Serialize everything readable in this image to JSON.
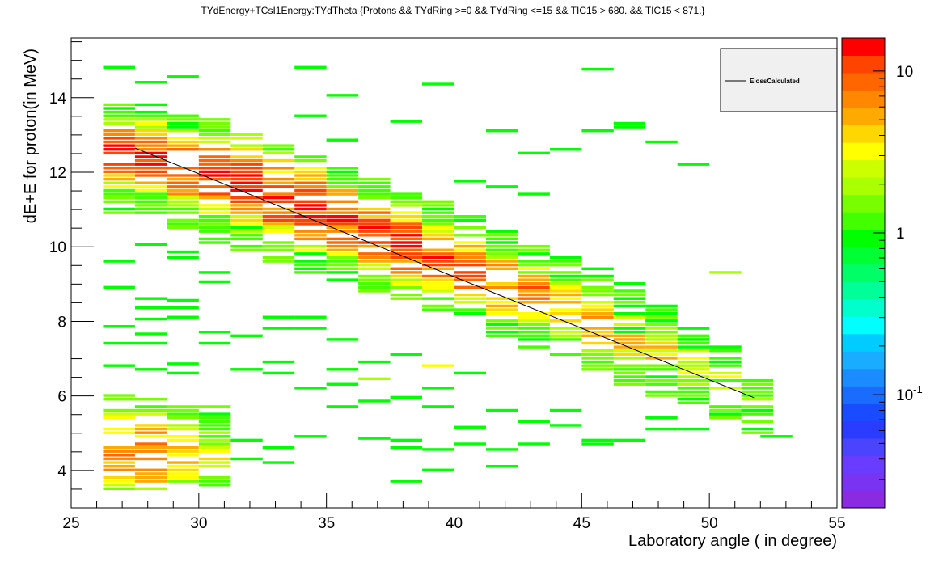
{
  "chart_data": {
    "type": "heatmap",
    "title": "TYdEnergy+TCsI1Energy:TYdTheta {Protons && TYdRing >=0 &&  TYdRing <=15 && TIC15 > 680. && TIC15 < 871.}",
    "xlabel": "Laboratory angle ( in degree)",
    "ylabel": "dE+E for proton(in MeV)",
    "xlim": [
      25,
      55
    ],
    "ylim": [
      3,
      15.6
    ],
    "x_ticks": [
      "25",
      "30",
      "35",
      "40",
      "45",
      "50",
      "55"
    ],
    "y_ticks": [
      "4",
      "6",
      "8",
      "10",
      "12",
      "14"
    ],
    "z_scale": "log",
    "z_range": [
      0.02,
      16
    ],
    "z_ticks": [
      {
        "value": 0.1,
        "label": "10",
        "exp": "-1"
      },
      {
        "value": 1,
        "label": "1",
        "exp": ""
      },
      {
        "value": 10,
        "label": "10",
        "exp": ""
      }
    ],
    "palette": [
      "#8a2be2",
      "#7a33f0",
      "#6a3cff",
      "#4a44ff",
      "#2a3cff",
      "#1a4cff",
      "#1a6cff",
      "#1a8cff",
      "#1aacff",
      "#00ccff",
      "#00ffff",
      "#00ffcc",
      "#00ff99",
      "#00ff66",
      "#00ff33",
      "#00ff00",
      "#44ff00",
      "#77ff00",
      "#aaff00",
      "#ccff00",
      "#ffff00",
      "#ffd700",
      "#ffaa00",
      "#ff8800",
      "#ff6600",
      "#ff4400",
      "#ff0000"
    ],
    "bin_width_x": 1.25,
    "bin_height_y": 0.1,
    "bands": [
      {
        "x0": 26.25,
        "y_lo": 10.9,
        "y_hi": 13.8,
        "peak": 12.5,
        "sigma": 0.5,
        "zmax": 12
      },
      {
        "x0": 27.5,
        "y_lo": 10.8,
        "y_hi": 13.6,
        "peak": 12.4,
        "sigma": 0.5,
        "zmax": 13
      },
      {
        "x0": 28.75,
        "y_lo": 10.5,
        "y_hi": 13.5,
        "peak": 12.1,
        "sigma": 0.55,
        "zmax": 11
      },
      {
        "x0": 30.0,
        "y_lo": 10.1,
        "y_hi": 13.4,
        "peak": 11.9,
        "sigma": 0.55,
        "zmax": 12
      },
      {
        "x0": 31.25,
        "y_lo": 9.9,
        "y_hi": 13.0,
        "peak": 11.7,
        "sigma": 0.6,
        "zmax": 14
      },
      {
        "x0": 32.5,
        "y_lo": 9.6,
        "y_hi": 12.7,
        "peak": 11.3,
        "sigma": 0.6,
        "zmax": 12
      },
      {
        "x0": 33.75,
        "y_lo": 9.3,
        "y_hi": 12.4,
        "peak": 11.0,
        "sigma": 0.6,
        "zmax": 13
      },
      {
        "x0": 35.0,
        "y_lo": 9.1,
        "y_hi": 12.1,
        "peak": 10.7,
        "sigma": 0.55,
        "zmax": 12
      },
      {
        "x0": 36.25,
        "y_lo": 8.8,
        "y_hi": 11.8,
        "peak": 10.3,
        "sigma": 0.55,
        "zmax": 11
      },
      {
        "x0": 37.5,
        "y_lo": 8.6,
        "y_hi": 11.5,
        "peak": 10.0,
        "sigma": 0.55,
        "zmax": 12
      },
      {
        "x0": 38.75,
        "y_lo": 8.3,
        "y_hi": 11.2,
        "peak": 9.7,
        "sigma": 0.5,
        "zmax": 10
      },
      {
        "x0": 40.0,
        "y_lo": 8.0,
        "y_hi": 10.8,
        "peak": 9.3,
        "sigma": 0.5,
        "zmax": 11
      },
      {
        "x0": 41.25,
        "y_lo": 7.6,
        "y_hi": 10.4,
        "peak": 9.0,
        "sigma": 0.5,
        "zmax": 9
      },
      {
        "x0": 42.5,
        "y_lo": 7.3,
        "y_hi": 10.0,
        "peak": 8.7,
        "sigma": 0.45,
        "zmax": 8
      },
      {
        "x0": 43.75,
        "y_lo": 7.1,
        "y_hi": 9.6,
        "peak": 8.3,
        "sigma": 0.45,
        "zmax": 6
      },
      {
        "x0": 45.0,
        "y_lo": 6.7,
        "y_hi": 9.3,
        "peak": 7.9,
        "sigma": 0.45,
        "zmax": 6
      },
      {
        "x0": 46.25,
        "y_lo": 6.3,
        "y_hi": 8.8,
        "peak": 7.5,
        "sigma": 0.45,
        "zmax": 5
      },
      {
        "x0": 47.5,
        "y_lo": 6.0,
        "y_hi": 8.4,
        "peak": 7.2,
        "sigma": 0.45,
        "zmax": 4
      },
      {
        "x0": 48.75,
        "y_lo": 5.7,
        "y_hi": 7.8,
        "peak": 6.8,
        "sigma": 0.4,
        "zmax": 3
      },
      {
        "x0": 50.0,
        "y_lo": 5.4,
        "y_hi": 7.3,
        "peak": 6.4,
        "sigma": 0.4,
        "zmax": 2.5
      },
      {
        "x0": 51.25,
        "y_lo": 5.0,
        "y_hi": 6.4,
        "peak": 5.9,
        "sigma": 0.35,
        "zmax": 1.5
      },
      {
        "x0": 26.25,
        "y_lo": 3.5,
        "y_hi": 6.1,
        "peak": 4.5,
        "sigma": 0.6,
        "zmax": 8
      },
      {
        "x0": 27.5,
        "y_lo": 3.5,
        "y_hi": 5.9,
        "peak": 4.4,
        "sigma": 0.6,
        "zmax": 9
      },
      {
        "x0": 28.75,
        "y_lo": 3.6,
        "y_hi": 5.8,
        "peak": 4.5,
        "sigma": 0.55,
        "zmax": 5
      },
      {
        "x0": 30.0,
        "y_lo": 3.6,
        "y_hi": 5.7,
        "peak": 4.5,
        "sigma": 0.5,
        "zmax": 3
      }
    ],
    "scatter_bins": [
      [
        26.25,
        14.8,
        1
      ],
      [
        27.5,
        14.4,
        1
      ],
      [
        28.75,
        14.55,
        1
      ],
      [
        33.75,
        14.8,
        1
      ],
      [
        35.0,
        14.05,
        1
      ],
      [
        38.75,
        14.35,
        1
      ],
      [
        45.0,
        14.75,
        1
      ],
      [
        27.5,
        13.8,
        1
      ],
      [
        33.75,
        13.5,
        1
      ],
      [
        37.5,
        13.35,
        1
      ],
      [
        41.25,
        13.1,
        1
      ],
      [
        45.0,
        13.1,
        1
      ],
      [
        46.25,
        13.3,
        1
      ],
      [
        46.25,
        13.2,
        1
      ],
      [
        43.75,
        12.6,
        1
      ],
      [
        42.5,
        12.5,
        1
      ],
      [
        47.5,
        12.8,
        1
      ],
      [
        48.75,
        12.2,
        1
      ],
      [
        40.0,
        11.75,
        1
      ],
      [
        41.25,
        11.6,
        1
      ],
      [
        42.5,
        11.4,
        1
      ],
      [
        35.0,
        12.85,
        1
      ],
      [
        26.25,
        11.0,
        1
      ],
      [
        27.5,
        10.05,
        1
      ],
      [
        28.75,
        9.85,
        1
      ],
      [
        28.75,
        9.7,
        1
      ],
      [
        30.0,
        9.05,
        1
      ],
      [
        30.0,
        9.3,
        1
      ],
      [
        26.25,
        9.6,
        1
      ],
      [
        26.25,
        8.9,
        1
      ],
      [
        27.5,
        8.6,
        1
      ],
      [
        28.75,
        8.55,
        1
      ],
      [
        28.75,
        8.35,
        1
      ],
      [
        28.75,
        8.1,
        1
      ],
      [
        27.5,
        8.35,
        1
      ],
      [
        27.5,
        8.05,
        1
      ],
      [
        26.25,
        7.85,
        1
      ],
      [
        26.25,
        7.4,
        1
      ],
      [
        27.5,
        7.65,
        1
      ],
      [
        27.5,
        7.4,
        1
      ],
      [
        30.0,
        7.7,
        1
      ],
      [
        31.25,
        7.6,
        1
      ],
      [
        32.5,
        8.1,
        1
      ],
      [
        32.5,
        7.8,
        1
      ],
      [
        33.75,
        8.1,
        1
      ],
      [
        33.75,
        7.8,
        1
      ],
      [
        30.0,
        7.4,
        1
      ],
      [
        26.25,
        6.8,
        1
      ],
      [
        27.5,
        6.7,
        1
      ],
      [
        28.75,
        6.85,
        1
      ],
      [
        28.75,
        6.6,
        1
      ],
      [
        31.25,
        6.7,
        1
      ],
      [
        32.5,
        6.9,
        1
      ],
      [
        32.5,
        6.6,
        1
      ],
      [
        35.0,
        7.5,
        1
      ],
      [
        35.0,
        6.7,
        1
      ],
      [
        36.25,
        6.9,
        1
      ],
      [
        36.25,
        6.45,
        2
      ],
      [
        37.5,
        7.1,
        1
      ],
      [
        38.75,
        6.8,
        3
      ],
      [
        38.75,
        6.2,
        1
      ],
      [
        40.0,
        6.6,
        1
      ],
      [
        41.25,
        5.6,
        1
      ],
      [
        42.5,
        5.3,
        1
      ],
      [
        43.75,
        5.6,
        1
      ],
      [
        43.75,
        5.2,
        1
      ],
      [
        45.0,
        4.8,
        1
      ],
      [
        45.0,
        4.7,
        1
      ],
      [
        46.25,
        4.8,
        1
      ],
      [
        47.5,
        5.4,
        1
      ],
      [
        47.5,
        5.1,
        1
      ],
      [
        48.75,
        5.1,
        1
      ],
      [
        50.0,
        5.5,
        1
      ],
      [
        51.25,
        5.6,
        1
      ],
      [
        51.25,
        5.1,
        1
      ],
      [
        52.0,
        4.9,
        1
      ],
      [
        50.0,
        9.3,
        2
      ],
      [
        35.0,
        5.7,
        1
      ],
      [
        36.25,
        5.85,
        1
      ],
      [
        37.5,
        5.95,
        1
      ],
      [
        38.75,
        5.7,
        1
      ],
      [
        36.25,
        4.85,
        1
      ],
      [
        37.5,
        4.8,
        1
      ],
      [
        37.5,
        4.6,
        1
      ],
      [
        38.75,
        4.55,
        1
      ],
      [
        40.0,
        5.15,
        1
      ],
      [
        40.0,
        4.7,
        1
      ],
      [
        41.25,
        4.55,
        1
      ],
      [
        42.5,
        4.7,
        1
      ],
      [
        41.25,
        4.1,
        1
      ],
      [
        38.75,
        4.0,
        1
      ],
      [
        37.5,
        3.7,
        1
      ],
      [
        33.75,
        4.9,
        1
      ],
      [
        32.5,
        4.6,
        1
      ],
      [
        32.5,
        4.2,
        1
      ],
      [
        31.25,
        4.8,
        1
      ],
      [
        31.25,
        4.3,
        1
      ],
      [
        33.75,
        6.2,
        1
      ],
      [
        35.0,
        6.3,
        1
      ],
      [
        46.25,
        7.8,
        1
      ],
      [
        46.25,
        7.7,
        1
      ],
      [
        47.5,
        8.0,
        1
      ],
      [
        48.75,
        7.5,
        1
      ],
      [
        48.75,
        7.8,
        1
      ],
      [
        50.0,
        6.9,
        1
      ],
      [
        50.0,
        7.3,
        1
      ],
      [
        42.5,
        9.8,
        1
      ],
      [
        43.75,
        9.7,
        1
      ],
      [
        45.0,
        9.4,
        1
      ],
      [
        45.0,
        9.2,
        1
      ],
      [
        46.25,
        9.0,
        1
      ],
      [
        46.25,
        8.6,
        1
      ],
      [
        47.5,
        8.4,
        1
      ],
      [
        47.5,
        8.2,
        1
      ],
      [
        41.25,
        10.4,
        1
      ],
      [
        40.0,
        10.7,
        1
      ],
      [
        38.75,
        11.0,
        1
      ]
    ],
    "fit_line": {
      "name": "ElossCalculated",
      "x": [
        27.5,
        51.75
      ],
      "y": [
        12.65,
        5.95
      ]
    },
    "legend_position": "top-right",
    "grid": false
  }
}
